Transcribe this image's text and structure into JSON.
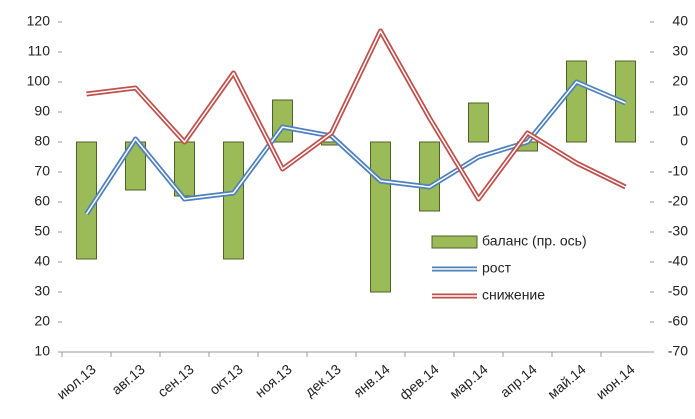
{
  "chart_data": {
    "type": "combo",
    "categories": [
      "июл.13",
      "авг.13",
      "сен.13",
      "окт.13",
      "ноя.13",
      "дек.13",
      "янв.14",
      "фев.14",
      "мар.14",
      "апр.14",
      "май.14",
      "июн.14"
    ],
    "series": [
      {
        "name": "баланс (пр. ось)",
        "type": "bar",
        "axis": "y2",
        "color": "#9bbb59",
        "values": [
          -39,
          -16,
          -18,
          -39,
          14,
          -1,
          -50,
          -23,
          13,
          -3,
          27,
          27
        ]
      },
      {
        "name": "рост",
        "type": "line",
        "color": "#4f81bd",
        "values": [
          56,
          81,
          61,
          63,
          85,
          82,
          67,
          65,
          75,
          80,
          100,
          93
        ]
      },
      {
        "name": "снижение",
        "type": "line",
        "color": "#c0504d",
        "values": [
          96,
          98,
          80,
          103,
          71,
          83,
          117,
          88,
          61,
          83,
          73,
          65
        ]
      }
    ],
    "ylim": [
      10,
      120
    ],
    "yticks": [
      10,
      20,
      30,
      40,
      50,
      60,
      70,
      80,
      90,
      100,
      110,
      120
    ],
    "y2lim": [
      -70,
      40
    ],
    "y2ticks": [
      -70,
      -60,
      -50,
      -40,
      -30,
      -20,
      -10,
      0,
      10,
      20,
      30,
      40
    ],
    "legend": "right"
  }
}
